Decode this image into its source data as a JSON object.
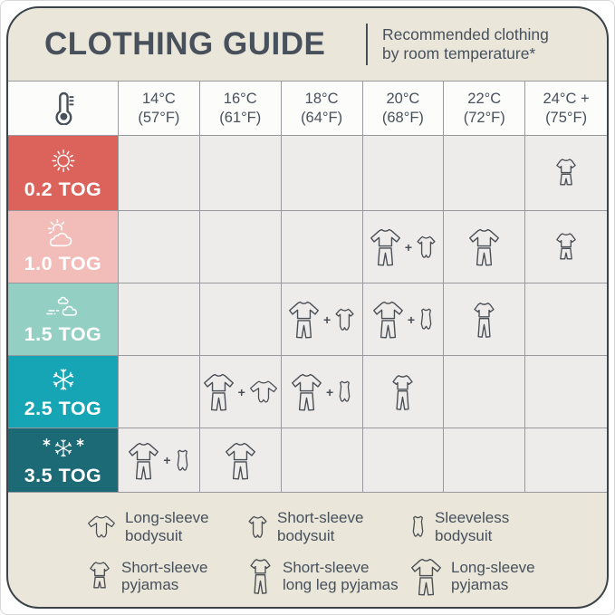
{
  "header": {
    "title": "CLOTHING GUIDE",
    "subtitle_line1": "Recommended clothing",
    "subtitle_line2": "by room temperature*"
  },
  "colors": {
    "card_background": "#eae7da",
    "card_border": "#3b434b",
    "text": "#47505b",
    "header_row_background": "#fcfcfb",
    "table_cell_background": "#edecea",
    "grid_line": "#97999c",
    "clothing_icon_stroke": "#4a4e55",
    "weather_icon_stroke": "#ffffff"
  },
  "chart_data": {
    "type": "table",
    "title": "CLOTHING GUIDE",
    "subtitle": "Recommended clothing by room temperature*",
    "corner_icon": "thermometer",
    "plus_sign": "+",
    "columns": [
      {
        "celsius": "14°C",
        "fahrenheit": "(57°F)"
      },
      {
        "celsius": "16°C",
        "fahrenheit": "(61°F)"
      },
      {
        "celsius": "18°C",
        "fahrenheit": "(64°F)"
      },
      {
        "celsius": "20°C",
        "fahrenheit": "(68°F)"
      },
      {
        "celsius": "22°C",
        "fahrenheit": "(72°F)"
      },
      {
        "celsius": "24°C +",
        "fahrenheit": "(75°F)"
      }
    ],
    "rows": [
      {
        "tog": "0.2 TOG",
        "color": "#dc635b",
        "weather_icon": "sun",
        "cells": [
          [],
          [],
          [],
          [],
          [],
          [
            "short-sleeve-pyjamas"
          ]
        ]
      },
      {
        "tog": "1.0 TOG",
        "color": "#f2bcb8",
        "weather_icon": "sun-behind-cloud",
        "cells": [
          [],
          [],
          [],
          [
            "long-sleeve-pyjamas",
            "short-sleeve-bodysuit"
          ],
          [
            "long-sleeve-pyjamas"
          ],
          [
            "short-sleeve-pyjamas"
          ]
        ]
      },
      {
        "tog": "1.5 TOG",
        "color": "#93cfc3",
        "weather_icon": "wind-clouds",
        "cells": [
          [],
          [],
          [
            "long-sleeve-pyjamas",
            "short-sleeve-bodysuit"
          ],
          [
            "long-sleeve-pyjamas",
            "sleeveless-bodysuit"
          ],
          [
            "short-sleeve-long-leg-pyjamas"
          ],
          []
        ]
      },
      {
        "tog": "2.5 TOG",
        "color": "#15a5b4",
        "weather_icon": "snowflake",
        "cells": [
          [],
          [
            "long-sleeve-pyjamas",
            "long-sleeve-bodysuit"
          ],
          [
            "long-sleeve-pyjamas",
            "sleeveless-bodysuit"
          ],
          [
            "short-sleeve-long-leg-pyjamas"
          ],
          [],
          []
        ]
      },
      {
        "tog": "3.5 TOG",
        "color": "#1b6a76",
        "weather_icon": "snowflakes",
        "cells": [
          [
            "long-sleeve-pyjamas",
            "sleeveless-bodysuit"
          ],
          [
            "long-sleeve-pyjamas"
          ],
          [],
          [],
          [],
          []
        ]
      }
    ],
    "legend": [
      {
        "icon": "long-sleeve-bodysuit",
        "line1": "Long-sleeve",
        "line2": "bodysuit"
      },
      {
        "icon": "short-sleeve-bodysuit",
        "line1": "Short-sleeve",
        "line2": "bodysuit"
      },
      {
        "icon": "sleeveless-bodysuit",
        "line1": "Sleeveless",
        "line2": "bodysuit"
      },
      {
        "icon": "short-sleeve-pyjamas",
        "line1": "Short-sleeve",
        "line2": "pyjamas"
      },
      {
        "icon": "short-sleeve-long-leg-pyjamas",
        "line1": "Short-sleeve",
        "line2": "long leg pyjamas"
      },
      {
        "icon": "long-sleeve-pyjamas",
        "line1": "Long-sleeve",
        "line2": "pyjamas"
      }
    ]
  }
}
